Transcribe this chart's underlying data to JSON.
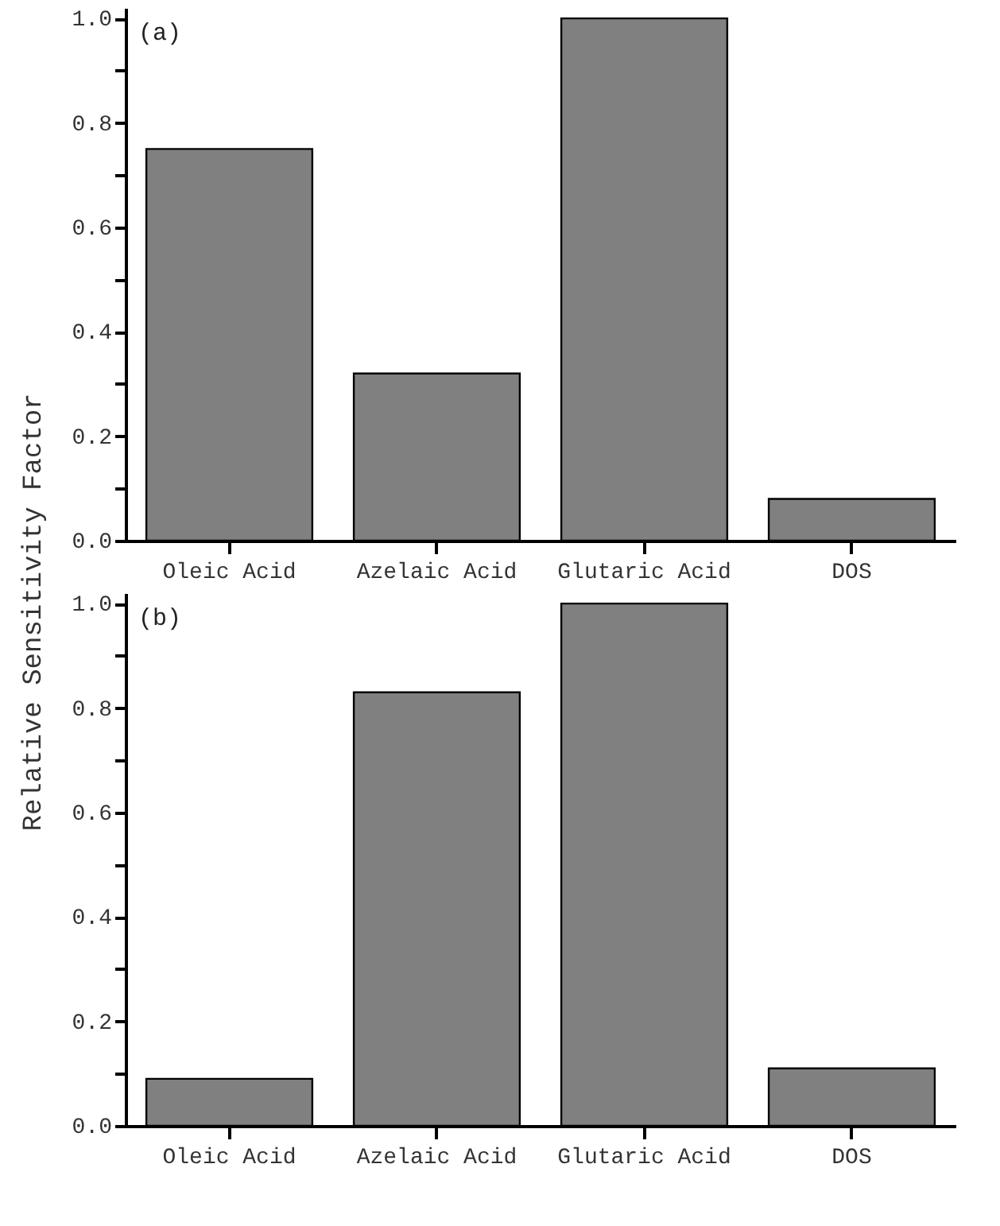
{
  "chart_data": [
    {
      "type": "bar",
      "ylabel": "Relative Sensitivity Factor",
      "annotations": [
        "(a)"
      ],
      "categories": [
        "Oleic  Acid",
        "Azelaic  Acid",
        "Glutaric Acid",
        "DOS"
      ],
      "values": [
        0.75,
        0.32,
        1.0,
        0.08
      ],
      "color": "#808080",
      "ylim": [
        0,
        1.02
      ],
      "yticks": [
        {
          "value": 0,
          "label": "0.0"
        },
        {
          "value": 0.1,
          "label": null
        },
        0.2,
        {
          "value": 0.3,
          "label": null
        },
        0.4,
        {
          "value": 0.5,
          "label": null
        },
        0.6,
        {
          "value": 0.7,
          "label": null
        },
        0.8,
        {
          "value": 0.9,
          "label": null
        },
        {
          "value": 1,
          "label": "1.0"
        }
      ],
      "grid": false
    },
    {
      "type": "bar",
      "annotations": [
        "(b)"
      ],
      "categories": [
        "Oleic  Acid",
        "Azelaic  Acid",
        "Glutaric Acid",
        "DOS"
      ],
      "values": [
        0.09,
        0.83,
        1.0,
        0.11
      ],
      "color": "#808080",
      "ylim": [
        0,
        1.02
      ],
      "yticks": [
        {
          "value": 0,
          "label": "0.0"
        },
        {
          "value": 0.1,
          "label": null
        },
        0.2,
        {
          "value": 0.3,
          "label": null
        },
        0.4,
        {
          "value": 0.5,
          "label": null
        },
        0.6,
        {
          "value": 0.7,
          "label": null
        },
        0.8,
        {
          "value": 0.9,
          "label": null
        },
        {
          "value": 1,
          "label": "1.0"
        }
      ],
      "grid": false
    }
  ]
}
